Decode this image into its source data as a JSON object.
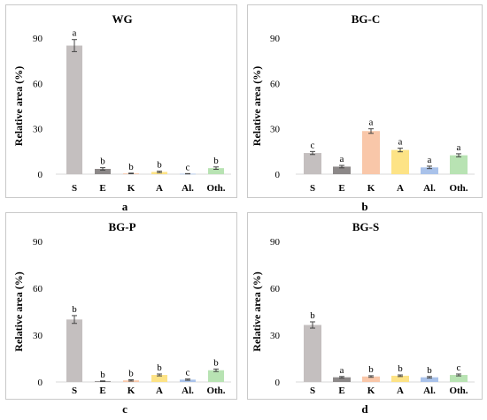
{
  "chart_data": [
    {
      "type": "bar",
      "title": "WG",
      "panel_letter": "a",
      "ylabel": "Relative area (%)",
      "ylim": [
        0,
        90
      ],
      "yticks": [
        0,
        30,
        60,
        90
      ],
      "categories": [
        "S",
        "E",
        "K",
        "A",
        "Al.",
        "Oth."
      ],
      "values": [
        85,
        3.5,
        0.5,
        1.5,
        0.3,
        4
      ],
      "errors": [
        4,
        0.8,
        0.2,
        0.5,
        0.1,
        0.8
      ],
      "letters": [
        "a",
        "b",
        "b",
        "b",
        "c",
        "b"
      ],
      "colors": [
        "#c4bfbf",
        "#8c8888",
        "#f9c7a9",
        "#fde386",
        "#a9c2ea",
        "#b8e3b3"
      ]
    },
    {
      "type": "bar",
      "title": "BG-C",
      "panel_letter": "b",
      "ylabel": "Relative area (%)",
      "ylim": [
        0,
        90
      ],
      "yticks": [
        0,
        30,
        60,
        90
      ],
      "categories": [
        "S",
        "E",
        "K",
        "A",
        "Al.",
        "Oth."
      ],
      "values": [
        14,
        5,
        28.5,
        16,
        4.5,
        12.5
      ],
      "errors": [
        1,
        0.8,
        1.5,
        1.2,
        0.8,
        1
      ],
      "letters": [
        "c",
        "a",
        "a",
        "a",
        "a",
        "a"
      ],
      "colors": [
        "#c4bfbf",
        "#8c8888",
        "#f9c7a9",
        "#fde386",
        "#a9c2ea",
        "#b8e3b3"
      ]
    },
    {
      "type": "bar",
      "title": "BG-P",
      "panel_letter": "c",
      "ylabel": "Relative area (%)",
      "ylim": [
        0,
        90
      ],
      "yticks": [
        0,
        30,
        60,
        90
      ],
      "categories": [
        "S",
        "E",
        "K",
        "A",
        "Al.",
        "Oth."
      ],
      "values": [
        40,
        0.5,
        1,
        4.5,
        1.5,
        7.5
      ],
      "errors": [
        2.5,
        0.2,
        0.4,
        0.6,
        0.4,
        0.8
      ],
      "letters": [
        "b",
        "b",
        "b",
        "b",
        "c",
        "b"
      ],
      "colors": [
        "#c4bfbf",
        "#8c8888",
        "#f9c7a9",
        "#fde386",
        "#a9c2ea",
        "#b8e3b3"
      ]
    },
    {
      "type": "bar",
      "title": "BG-S",
      "panel_letter": "d",
      "ylabel": "Relative area (%)",
      "ylim": [
        0,
        90
      ],
      "yticks": [
        0,
        30,
        60,
        90
      ],
      "categories": [
        "S",
        "E",
        "K",
        "A",
        "Al.",
        "Oth."
      ],
      "values": [
        36.5,
        3,
        3.5,
        4,
        3,
        4.5
      ],
      "errors": [
        2,
        0.5,
        0.5,
        0.5,
        0.5,
        0.6
      ],
      "letters": [
        "b",
        "a",
        "b",
        "b",
        "b",
        "c"
      ],
      "colors": [
        "#c4bfbf",
        "#8c8888",
        "#f9c7a9",
        "#fde386",
        "#a9c2ea",
        "#b8e3b3"
      ]
    }
  ]
}
